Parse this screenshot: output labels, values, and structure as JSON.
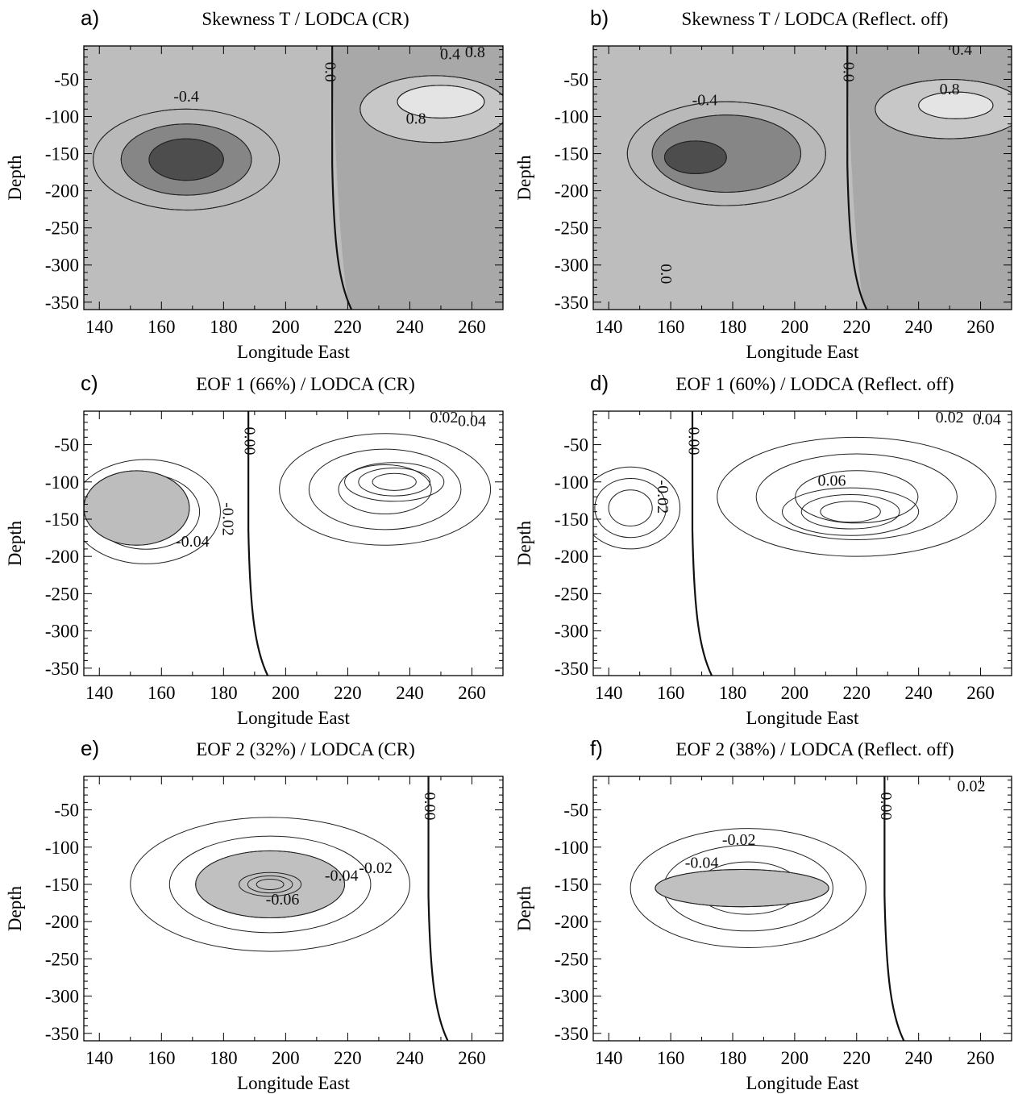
{
  "figure": {
    "panels": [
      {
        "letter": "a)",
        "title": "Skewness T / LODCA (CR)",
        "shade_style": "skewness",
        "zero_x": 215,
        "contour_labels": [
          {
            "text": "-0.4",
            "x": 168,
            "y": -75
          },
          {
            "text": "0.8",
            "x": 242,
            "y": -105
          },
          {
            "text": "0.4",
            "x": 253,
            "y": -18
          },
          {
            "text": "0.8",
            "x": 261,
            "y": -15
          },
          {
            "text": "0.0",
            "x": 214,
            "y": -40,
            "vertical": true
          }
        ],
        "features": [
          {
            "x": 168,
            "y": -158,
            "rx": 30,
            "ry": 68,
            "fill": "#b9b9b9",
            "kind": "neg"
          },
          {
            "x": 168,
            "y": -158,
            "rx": 21,
            "ry": 48,
            "fill": "#868686",
            "kind": "neg"
          },
          {
            "x": 168,
            "y": -158,
            "rx": 12,
            "ry": 28,
            "fill": "#4d4d4d",
            "kind": "neg"
          },
          {
            "x": 248,
            "y": -90,
            "rx": 24,
            "ry": 45,
            "fill": "#c7c7c7",
            "kind": "pos"
          },
          {
            "x": 250,
            "y": -80,
            "rx": 14,
            "ry": 22,
            "fill": "#e4e4e4",
            "kind": "pos"
          }
        ]
      },
      {
        "letter": "b)",
        "title": "Skewness T / LODCA (Reflect. off)",
        "shade_style": "skewness",
        "zero_x": 217,
        "contour_labels": [
          {
            "text": "-0.4",
            "x": 171,
            "y": -80
          },
          {
            "text": "0.8",
            "x": 250,
            "y": -65
          },
          {
            "text": "0.4",
            "x": 254,
            "y": -12
          },
          {
            "text": "0.0",
            "x": 217,
            "y": -40,
            "vertical": true
          },
          {
            "text": "0.0",
            "x": 158,
            "y": -312,
            "vertical": true
          }
        ],
        "features": [
          {
            "x": 178,
            "y": -150,
            "rx": 32,
            "ry": 70,
            "fill": "#b9b9b9",
            "kind": "neg"
          },
          {
            "x": 178,
            "y": -150,
            "rx": 24,
            "ry": 52,
            "fill": "#868686",
            "kind": "neg"
          },
          {
            "x": 168,
            "y": -155,
            "rx": 10,
            "ry": 22,
            "fill": "#4d4d4d",
            "kind": "neg"
          },
          {
            "x": 250,
            "y": -90,
            "rx": 24,
            "ry": 40,
            "fill": "#c7c7c7",
            "kind": "pos"
          },
          {
            "x": 252,
            "y": -85,
            "rx": 12,
            "ry": 18,
            "fill": "#e4e4e4",
            "kind": "pos"
          }
        ]
      },
      {
        "letter": "c)",
        "title": "EOF 1 (66%) / LODCA (CR)",
        "shade_style": "eof",
        "zero_x": 188,
        "contour_labels": [
          {
            "text": "-0.04",
            "x": 170,
            "y": -182
          },
          {
            "text": "-0.02",
            "x": 181,
            "y": -150,
            "vertical": true
          },
          {
            "text": "0.02",
            "x": 251,
            "y": -15
          },
          {
            "text": "0.04",
            "x": 260,
            "y": -20
          },
          {
            "text": "0.00",
            "x": 188,
            "y": -45,
            "vertical": true
          }
        ],
        "features": [
          {
            "x": 155,
            "y": -140,
            "rx": 24,
            "ry": 70,
            "fill": "none",
            "kind": "neg"
          },
          {
            "x": 152,
            "y": -135,
            "rx": 17,
            "ry": 50,
            "fill": "#bdbdbd",
            "kind": "neg"
          },
          {
            "x": 232,
            "y": -110,
            "rx": 34,
            "ry": 75,
            "fill": "none",
            "kind": "pos"
          },
          {
            "x": 235,
            "y": -100,
            "rx": 16,
            "ry": 26,
            "fill": "none",
            "kind": "pos"
          }
        ]
      },
      {
        "letter": "d)",
        "title": "EOF 1 (60%) / LODCA (Reflect. off)",
        "shade_style": "eof",
        "zero_x": 167,
        "contour_labels": [
          {
            "text": "0.06",
            "x": 212,
            "y": -100
          },
          {
            "text": "-0.02",
            "x": 157,
            "y": -120,
            "vertical": true
          },
          {
            "text": "0.02",
            "x": 250,
            "y": -15
          },
          {
            "text": "0.04",
            "x": 262,
            "y": -18
          },
          {
            "text": "0.00",
            "x": 167,
            "y": -45,
            "vertical": true
          }
        ],
        "features": [
          {
            "x": 147,
            "y": -135,
            "rx": 16,
            "ry": 55,
            "fill": "none",
            "kind": "neg"
          },
          {
            "x": 220,
            "y": -120,
            "rx": 45,
            "ry": 80,
            "fill": "none",
            "kind": "pos"
          },
          {
            "x": 218,
            "y": -140,
            "rx": 22,
            "ry": 32,
            "fill": "none",
            "kind": "pos"
          }
        ]
      },
      {
        "letter": "e)",
        "title": "EOF 2 (32%) / LODCA (CR)",
        "shade_style": "eof",
        "zero_x": 246,
        "contour_labels": [
          {
            "text": "-0.06",
            "x": 199,
            "y": -172
          },
          {
            "text": "-0.04",
            "x": 218,
            "y": -140
          },
          {
            "text": "-0.02",
            "x": 229,
            "y": -130
          },
          {
            "text": "0.00",
            "x": 246,
            "y": -45,
            "vertical": true
          }
        ],
        "features": [
          {
            "x": 195,
            "y": -150,
            "rx": 45,
            "ry": 90,
            "fill": "none",
            "kind": "neg"
          },
          {
            "x": 195,
            "y": -150,
            "rx": 24,
            "ry": 45,
            "fill": "#c0c0c0",
            "kind": "neg"
          },
          {
            "x": 195,
            "y": -150,
            "rx": 10,
            "ry": 16,
            "fill": "none",
            "kind": "neg"
          }
        ]
      },
      {
        "letter": "f)",
        "title": "EOF 2 (38%) / LODCA (Reflect. off)",
        "shade_style": "eof",
        "zero_x": 229,
        "contour_labels": [
          {
            "text": "-0.02",
            "x": 182,
            "y": -92
          },
          {
            "text": "-0.04",
            "x": 170,
            "y": -123
          },
          {
            "text": "0.02",
            "x": 257,
            "y": -20
          },
          {
            "text": "0.00",
            "x": 229,
            "y": -45,
            "vertical": true
          }
        ],
        "features": [
          {
            "x": 185,
            "y": -155,
            "rx": 38,
            "ry": 80,
            "fill": "none",
            "kind": "neg"
          },
          {
            "x": 183,
            "y": -155,
            "rx": 28,
            "ry": 25,
            "fill": "#c0c0c0",
            "kind": "neg"
          }
        ]
      }
    ]
  },
  "chart_data": [
    {
      "type": "heatmap",
      "panel": "a)",
      "title": "Skewness T / LODCA (CR)",
      "xlabel": "Longitude East",
      "ylabel": "Depth",
      "xlim": [
        135,
        270
      ],
      "ylim": [
        -360,
        -5
      ],
      "xticks": [
        140,
        160,
        180,
        200,
        220,
        240,
        260
      ],
      "yticks": [
        -50,
        -100,
        -150,
        -200,
        -250,
        -300,
        -350
      ],
      "contour_levels_labeled": [
        -0.4,
        0.0,
        0.4,
        0.8
      ]
    },
    {
      "type": "heatmap",
      "panel": "b)",
      "title": "Skewness T / LODCA (Reflect. off)",
      "xlabel": "Longitude East",
      "ylabel": "Depth",
      "xlim": [
        135,
        270
      ],
      "ylim": [
        -360,
        -5
      ],
      "xticks": [
        140,
        160,
        180,
        200,
        220,
        240,
        260
      ],
      "yticks": [
        -50,
        -100,
        -150,
        -200,
        -250,
        -300,
        -350
      ],
      "contour_levels_labeled": [
        -0.4,
        0.0,
        0.4,
        0.8
      ]
    },
    {
      "type": "heatmap",
      "panel": "c)",
      "title": "EOF 1 (66%) / LODCA (CR)",
      "xlabel": "Longitude East",
      "ylabel": "Depth",
      "xlim": [
        135,
        270
      ],
      "ylim": [
        -360,
        -5
      ],
      "xticks": [
        140,
        160,
        180,
        200,
        220,
        240,
        260
      ],
      "yticks": [
        -50,
        -100,
        -150,
        -200,
        -250,
        -300,
        -350
      ],
      "contour_levels_labeled": [
        -0.04,
        -0.02,
        0.0,
        0.02,
        0.04
      ]
    },
    {
      "type": "heatmap",
      "panel": "d)",
      "title": "EOF 1 (60%) / LODCA (Reflect. off)",
      "xlabel": "Longitude East",
      "ylabel": "Depth",
      "xlim": [
        135,
        270
      ],
      "ylim": [
        -360,
        -5
      ],
      "xticks": [
        140,
        160,
        180,
        200,
        220,
        240,
        260
      ],
      "yticks": [
        -50,
        -100,
        -150,
        -200,
        -250,
        -300,
        -350
      ],
      "contour_levels_labeled": [
        -0.02,
        0.0,
        0.02,
        0.04,
        0.06
      ]
    },
    {
      "type": "heatmap",
      "panel": "e)",
      "title": "EOF 2 (32%) / LODCA (CR)",
      "xlabel": "Longitude East",
      "ylabel": "Depth",
      "xlim": [
        135,
        270
      ],
      "ylim": [
        -360,
        -5
      ],
      "xticks": [
        140,
        160,
        180,
        200,
        220,
        240,
        260
      ],
      "yticks": [
        -50,
        -100,
        -150,
        -200,
        -250,
        -300,
        -350
      ],
      "contour_levels_labeled": [
        -0.06,
        -0.04,
        -0.02,
        0.0
      ]
    },
    {
      "type": "heatmap",
      "panel": "f)",
      "title": "EOF 2 (38%) / LODCA (Reflect. off)",
      "xlabel": "Longitude East",
      "ylabel": "Depth",
      "xlim": [
        135,
        270
      ],
      "ylim": [
        -360,
        -5
      ],
      "xticks": [
        140,
        160,
        180,
        200,
        220,
        240,
        260
      ],
      "yticks": [
        -50,
        -100,
        -150,
        -200,
        -250,
        -300,
        -350
      ],
      "contour_levels_labeled": [
        -0.04,
        -0.02,
        0.0,
        0.02
      ]
    }
  ]
}
